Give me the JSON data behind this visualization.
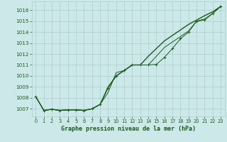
{
  "title": "Graphe pression niveau de la mer (hPa)",
  "bg_color": "#cce8e8",
  "grid_color": "#aacfcf",
  "line_color": "#1a5c1a",
  "x_ticks": [
    0,
    1,
    2,
    3,
    4,
    5,
    6,
    7,
    8,
    9,
    10,
    11,
    12,
    13,
    14,
    15,
    16,
    17,
    18,
    19,
    20,
    21,
    22,
    23
  ],
  "y_ticks": [
    1007,
    1008,
    1009,
    1010,
    1011,
    1012,
    1013,
    1014,
    1015,
    1016
  ],
  "xlim": [
    -0.5,
    23.5
  ],
  "ylim": [
    1006.3,
    1016.8
  ],
  "series1": [
    1008.1,
    1006.85,
    1006.95,
    1006.85,
    1006.9,
    1006.9,
    1006.85,
    1007.0,
    1007.4,
    1008.9,
    1010.0,
    1010.5,
    1011.0,
    1011.0,
    1011.0,
    1011.05,
    1011.7,
    1012.5,
    1013.4,
    1014.0,
    1015.0,
    1015.1,
    1015.7,
    1016.35
  ],
  "series2": [
    1008.1,
    1006.85,
    1006.95,
    1006.85,
    1006.9,
    1006.9,
    1006.85,
    1007.0,
    1007.4,
    1008.5,
    1010.3,
    1010.5,
    1011.0,
    1011.0,
    1011.0,
    1011.8,
    1012.6,
    1013.1,
    1013.6,
    1014.1,
    1015.0,
    1015.2,
    1015.7,
    1016.35
  ],
  "series3": [
    1008.1,
    1006.85,
    1006.95,
    1006.85,
    1006.9,
    1006.9,
    1006.85,
    1007.0,
    1007.4,
    1009.0,
    1010.0,
    1010.5,
    1011.0,
    1011.0,
    1011.8,
    1012.5,
    1013.2,
    1013.7,
    1014.2,
    1014.7,
    1015.1,
    1015.5,
    1015.85,
    1016.35
  ]
}
